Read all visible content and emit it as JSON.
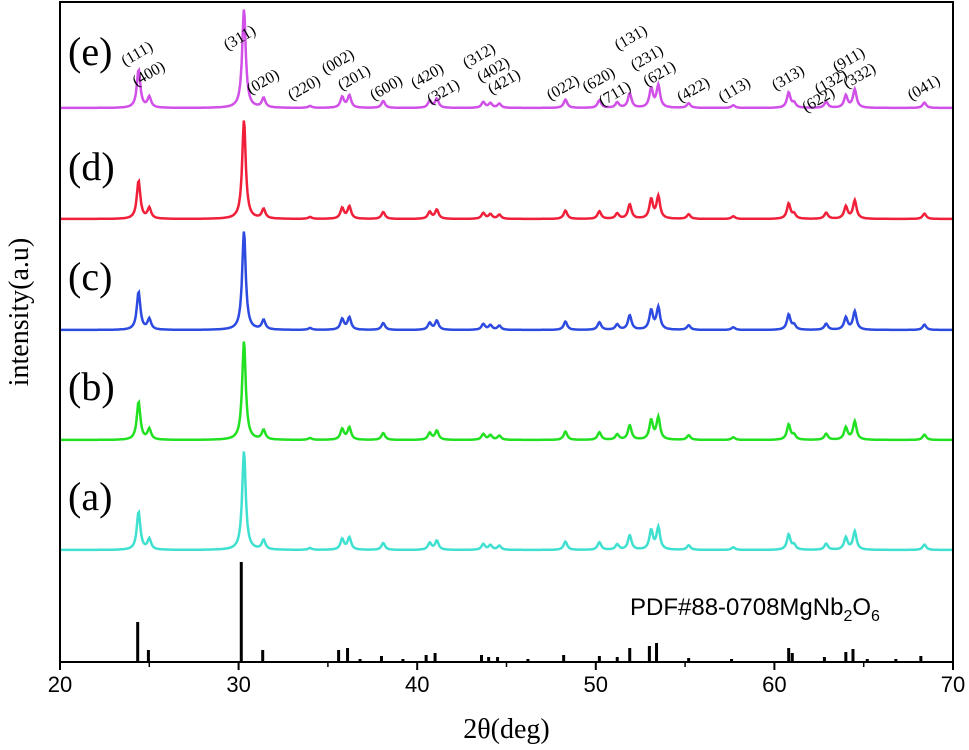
{
  "chart_data": {
    "type": "line",
    "xlabel": "2θ(deg)",
    "ylabel": "intensity(a.u)",
    "xlim": [
      20,
      70
    ],
    "xticks": [
      20,
      30,
      40,
      50,
      60,
      70
    ],
    "reference": {
      "label_main": "PDF#88-0708MgNb",
      "label_sub1": "2",
      "label_mid": "O",
      "label_sub2": "6",
      "color": "#000000",
      "peaks": [
        [
          24.35,
          0.4
        ],
        [
          24.95,
          0.12
        ],
        [
          30.15,
          1.0
        ],
        [
          31.35,
          0.12
        ],
        [
          35.6,
          0.12
        ],
        [
          36.1,
          0.14
        ],
        [
          38.0,
          0.06
        ],
        [
          40.5,
          0.07
        ],
        [
          41.0,
          0.09
        ],
        [
          43.6,
          0.07
        ],
        [
          44.0,
          0.05
        ],
        [
          44.5,
          0.05
        ],
        [
          48.2,
          0.07
        ],
        [
          50.2,
          0.06
        ],
        [
          51.2,
          0.05
        ],
        [
          51.9,
          0.14
        ],
        [
          53.0,
          0.16
        ],
        [
          53.4,
          0.19
        ],
        [
          55.2,
          0.04
        ],
        [
          57.6,
          0.03
        ],
        [
          60.8,
          0.14
        ],
        [
          61.0,
          0.09
        ],
        [
          62.8,
          0.05
        ],
        [
          64.0,
          0.1
        ],
        [
          64.4,
          0.13
        ],
        [
          68.2,
          0.06
        ],
        [
          36.8,
          0.03
        ],
        [
          39.2,
          0.03
        ],
        [
          46.2,
          0.03
        ],
        [
          65.2,
          0.03
        ],
        [
          66.8,
          0.03
        ]
      ]
    },
    "peaks": [
      [
        24.4,
        1.0
      ],
      [
        25.0,
        0.28
      ],
      [
        30.3,
        2.6
      ],
      [
        31.4,
        0.25
      ],
      [
        34.0,
        0.05
      ],
      [
        35.8,
        0.28
      ],
      [
        36.2,
        0.32
      ],
      [
        38.1,
        0.18
      ],
      [
        40.7,
        0.18
      ],
      [
        41.1,
        0.24
      ],
      [
        43.7,
        0.15
      ],
      [
        44.1,
        0.12
      ],
      [
        44.6,
        0.11
      ],
      [
        48.3,
        0.22
      ],
      [
        50.2,
        0.2
      ],
      [
        51.2,
        0.14
      ],
      [
        51.9,
        0.38
      ],
      [
        53.1,
        0.5
      ],
      [
        53.5,
        0.58
      ],
      [
        55.2,
        0.12
      ],
      [
        57.7,
        0.07
      ],
      [
        60.8,
        0.4
      ],
      [
        61.1,
        0.12
      ],
      [
        62.9,
        0.16
      ],
      [
        64.0,
        0.32
      ],
      [
        64.5,
        0.48
      ],
      [
        68.4,
        0.14
      ]
    ],
    "series": [
      {
        "name": "(a)",
        "color": "#40E0D0",
        "scale": 1.0
      },
      {
        "name": "(b)",
        "color": "#22E022",
        "scale": 1.0
      },
      {
        "name": "(c)",
        "color": "#2D4BE0",
        "scale": 1.0
      },
      {
        "name": "(d)",
        "color": "#F0203A",
        "scale": 1.0
      },
      {
        "name": "(e)",
        "color": "#D050E8",
        "scale": 1.0
      }
    ],
    "hkl_labels": [
      {
        "text": "(111)",
        "x": 24.45
      },
      {
        "text": "(400)",
        "x": 25.1
      },
      {
        "text": "(311)",
        "x": 30.2
      },
      {
        "text": "(020)",
        "x": 31.5
      },
      {
        "text": "(220)",
        "x": 33.8
      },
      {
        "text": "(002)",
        "x": 35.7
      },
      {
        "text": "(201)",
        "x": 36.6
      },
      {
        "text": "(600)",
        "x": 38.4
      },
      {
        "text": "(420)",
        "x": 40.7
      },
      {
        "text": "(321)",
        "x": 41.6
      },
      {
        "text": "(312)",
        "x": 43.6
      },
      {
        "text": "(402)",
        "x": 44.4
      },
      {
        "text": "(421)",
        "x": 45.0
      },
      {
        "text": "(022)",
        "x": 48.3
      },
      {
        "text": "(620)",
        "x": 50.3
      },
      {
        "text": "(711)",
        "x": 51.2
      },
      {
        "text": "(131)",
        "x": 52.1
      },
      {
        "text": "(231)",
        "x": 53.0
      },
      {
        "text": "(621)",
        "x": 53.7
      },
      {
        "text": "(422)",
        "x": 55.6
      },
      {
        "text": "(113)",
        "x": 57.9
      },
      {
        "text": "(313)",
        "x": 60.9
      },
      {
        "text": "(622)",
        "x": 62.6
      },
      {
        "text": "(132)",
        "x": 63.3
      },
      {
        "text": "(911)",
        "x": 64.3
      },
      {
        "text": "(332)",
        "x": 64.9
      },
      {
        "text": "(041)",
        "x": 68.5
      }
    ]
  }
}
